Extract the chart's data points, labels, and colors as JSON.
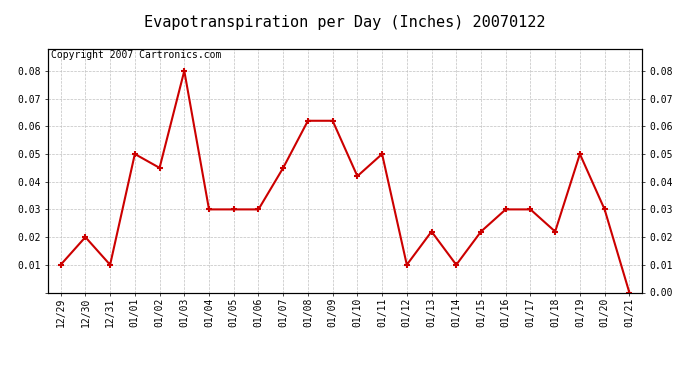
{
  "title": "Evapotranspiration per Day (Inches) 20070122",
  "copyright_text": "Copyright 2007 Cartronics.com",
  "x_labels": [
    "12/29",
    "12/30",
    "12/31",
    "01/01",
    "01/02",
    "01/03",
    "01/04",
    "01/05",
    "01/06",
    "01/07",
    "01/08",
    "01/09",
    "01/10",
    "01/11",
    "01/12",
    "01/13",
    "01/14",
    "01/15",
    "01/16",
    "01/17",
    "01/18",
    "01/19",
    "01/20",
    "01/21"
  ],
  "y_values": [
    0.01,
    0.02,
    0.01,
    0.05,
    0.045,
    0.08,
    0.03,
    0.03,
    0.03,
    0.045,
    0.062,
    0.062,
    0.042,
    0.05,
    0.01,
    0.022,
    0.01,
    0.022,
    0.03,
    0.03,
    0.022,
    0.05,
    0.03,
    0.0
  ],
  "line_color": "#cc0000",
  "marker": "+",
  "marker_size": 5,
  "marker_linewidth": 1.5,
  "bg_color": "#ffffff",
  "plot_bg_color": "#ffffff",
  "grid_color": "#c0c0c0",
  "ylim": [
    0.0,
    0.088
  ],
  "yticks": [
    0.0,
    0.01,
    0.02,
    0.03,
    0.04,
    0.05,
    0.06,
    0.07,
    0.08
  ],
  "ytick_labels_left": [
    "",
    "0.01",
    "0.02",
    "0.03",
    "0.04",
    "0.05",
    "0.06",
    "0.07",
    "0.08"
  ],
  "ytick_labels_right": [
    "0.00",
    "0.01",
    "0.02",
    "0.03",
    "0.04",
    "0.05",
    "0.06",
    "0.07",
    "0.08"
  ],
  "title_fontsize": 11,
  "tick_fontsize": 7,
  "copyright_fontsize": 7
}
